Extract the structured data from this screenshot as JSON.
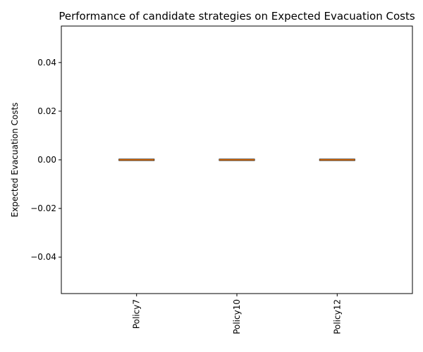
{
  "chart_data": {
    "type": "box",
    "title": "Performance of candidate strategies on Expected Evacuation Costs",
    "xlabel": "",
    "ylabel": "Expected Evacuation Costs",
    "categories": [
      "Policy7",
      "Policy10",
      "Policy12"
    ],
    "boxes": [
      {
        "category": "Policy7",
        "min": 0.0,
        "q1": 0.0,
        "median": 0.0,
        "q3": 0.0,
        "max": 0.0
      },
      {
        "category": "Policy10",
        "min": 0.0,
        "q1": 0.0,
        "median": 0.0,
        "q3": 0.0,
        "max": 0.0
      },
      {
        "category": "Policy12",
        "min": 0.0,
        "q1": 0.0,
        "median": 0.0,
        "q3": 0.0,
        "max": 0.0
      }
    ],
    "ylim": [
      -0.055,
      0.055
    ],
    "yticks": [
      -0.04,
      -0.02,
      0.0,
      0.02,
      0.04
    ],
    "ytick_labels": [
      "−0.04",
      "−0.02",
      "0.00",
      "0.02",
      "0.04"
    ],
    "xtick_rotation": "vertical",
    "grid": false,
    "legend": "none",
    "colors": {
      "box": "#000000",
      "median": "#ff7f0e",
      "axes": "#000000"
    }
  }
}
